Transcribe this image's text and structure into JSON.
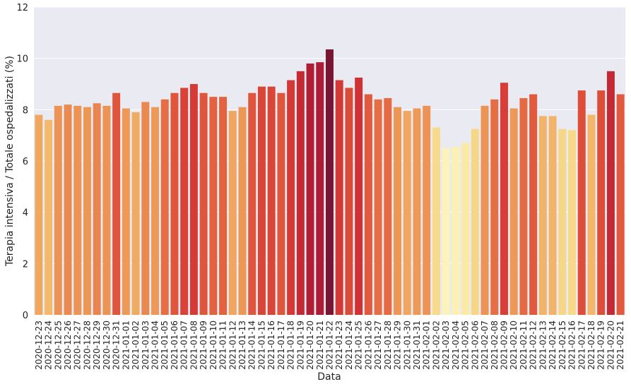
{
  "chart_data": {
    "type": "bar",
    "title": "",
    "xlabel": "Data",
    "ylabel": "Terapia intensiva / Totale ospedalizzati (%)",
    "ylim": [
      0,
      12
    ],
    "yticks": [
      0,
      2,
      4,
      6,
      8,
      10,
      12
    ],
    "grid": true,
    "legend": "none",
    "colormap": "YlOrRd (color by value)",
    "categories": [
      "2020-12-23",
      "2020-12-24",
      "2020-12-25",
      "2020-12-26",
      "2020-12-27",
      "2020-12-28",
      "2020-12-29",
      "2020-12-30",
      "2020-12-31",
      "2021-01-01",
      "2021-01-02",
      "2021-01-03",
      "2021-01-04",
      "2021-01-05",
      "2021-01-06",
      "2021-01-07",
      "2021-01-08",
      "2021-01-09",
      "2021-01-10",
      "2021-01-11",
      "2021-01-12",
      "2021-01-13",
      "2021-01-14",
      "2021-01-15",
      "2021-01-16",
      "2021-01-17",
      "2021-01-18",
      "2021-01-19",
      "2021-01-20",
      "2021-01-21",
      "2021-01-22",
      "2021-01-23",
      "2021-01-24",
      "2021-01-25",
      "2021-01-26",
      "2021-01-27",
      "2021-01-28",
      "2021-01-29",
      "2021-01-30",
      "2021-01-31",
      "2021-02-01",
      "2021-02-02",
      "2021-02-03",
      "2021-02-04",
      "2021-02-05",
      "2021-02-06",
      "2021-02-07",
      "2021-02-08",
      "2021-02-09",
      "2021-02-10",
      "2021-02-11",
      "2021-02-12",
      "2021-02-13",
      "2021-02-14",
      "2021-02-15",
      "2021-02-16",
      "2021-02-17",
      "2021-02-18",
      "2021-02-19",
      "2021-02-20",
      "2021-02-21"
    ],
    "values": [
      7.8,
      7.6,
      8.15,
      8.2,
      8.15,
      8.1,
      8.25,
      8.15,
      8.65,
      8.05,
      7.9,
      8.3,
      8.1,
      8.4,
      8.65,
      8.85,
      9.0,
      8.65,
      8.5,
      8.5,
      7.95,
      8.1,
      8.65,
      8.9,
      8.9,
      8.65,
      9.15,
      9.5,
      9.8,
      9.85,
      10.35,
      9.15,
      8.85,
      9.25,
      8.6,
      8.4,
      8.45,
      8.1,
      7.95,
      8.05,
      8.15,
      7.3,
      6.5,
      6.55,
      6.7,
      7.25,
      8.15,
      8.4,
      9.05,
      8.05,
      8.45,
      8.6,
      7.75,
      7.75,
      7.25,
      7.2,
      8.75,
      7.8,
      8.75,
      9.5,
      8.6
    ],
    "colors": [
      "#f0a861",
      "#f3b96c",
      "#eb9455",
      "#e98b51",
      "#eb9455",
      "#ec9756",
      "#e88550",
      "#eb9455",
      "#e0563c",
      "#ed9a58",
      "#f0ab63",
      "#e9894f",
      "#ed9a58",
      "#e66e45",
      "#e0563c",
      "#d94237",
      "#d53a36",
      "#e0563c",
      "#e3623f",
      "#e3623f",
      "#f0a660",
      "#ec9756",
      "#e0563c",
      "#d94638",
      "#d94638",
      "#e0563c",
      "#d43935",
      "#c42a33",
      "#b11e34",
      "#ad1b34",
      "#7a1433",
      "#d43935",
      "#db4b39",
      "#cf3234",
      "#e15a3d",
      "#e66e45",
      "#e56a43",
      "#ec9756",
      "#f0a660",
      "#ed9a58",
      "#eb9455",
      "#f7da8c",
      "#fcf2bb",
      "#fcf0b5",
      "#faeaa5",
      "#f6d788",
      "#eb9455",
      "#e66e45",
      "#d83e37",
      "#ed9a58",
      "#e56a43",
      "#e15a3d",
      "#f2b36a",
      "#f2b36a",
      "#f6d788",
      "#f7d988",
      "#dd4e3a",
      "#f3b66b",
      "#dd4e3a",
      "#c42a33",
      "#e15a3d"
    ]
  }
}
